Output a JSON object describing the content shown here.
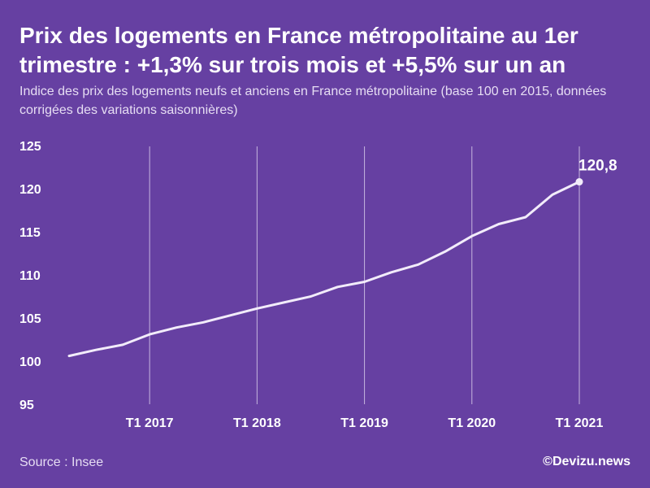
{
  "title": "Prix des logements en France métropolitaine au 1er trimestre : +1,3% sur trois mois et +5,5% sur un an",
  "subtitle": "Indice des prix des logements neufs et anciens en France métropolitaine (base 100 en 2015, données corrigées des variations saisonnières)",
  "source": "Source : Insee",
  "brand": "©Devizu.news",
  "colors": {
    "background": "#6640A2",
    "line": "#F2ECFA",
    "grid": "#E6DDF3"
  },
  "chart_data": {
    "type": "line",
    "title": "Prix des logements en France métropolitaine au 1er trimestre : +1,3% sur trois mois et +5,5% sur un an",
    "xlabel": "",
    "ylabel": "",
    "ylim": [
      95,
      125
    ],
    "yticks": [
      95,
      100,
      105,
      110,
      115,
      120,
      125
    ],
    "x": [
      "T2 2016",
      "T3 2016",
      "T4 2016",
      "T1 2017",
      "T2 2017",
      "T3 2017",
      "T4 2017",
      "T1 2018",
      "T2 2018",
      "T3 2018",
      "T4 2018",
      "T1 2019",
      "T2 2019",
      "T3 2019",
      "T4 2019",
      "T1 2020",
      "T2 2020",
      "T3 2020",
      "T4 2020",
      "T1 2021"
    ],
    "xtick_labels": [
      "T1 2017",
      "T1 2018",
      "T1 2019",
      "T1 2020",
      "T1 2021"
    ],
    "grid": "vertical lines at labelled quarters",
    "series": [
      {
        "values": [
          100.6,
          101.3,
          101.9,
          103.1,
          103.9,
          104.5,
          105.3,
          106.1,
          106.8,
          107.5,
          108.6,
          109.2,
          110.3,
          111.2,
          112.7,
          114.5,
          115.9,
          116.7,
          119.3,
          120.8
        ]
      }
    ],
    "annotations": [
      {
        "x": "T1 2021",
        "label": "120,8"
      }
    ]
  }
}
